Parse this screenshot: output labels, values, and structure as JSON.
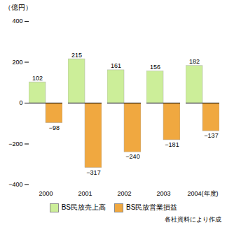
{
  "chart_data": {
    "type": "bar",
    "categories": [
      "2000",
      "2001",
      "2002",
      "2003",
      "2004(年度)"
    ],
    "series": [
      {
        "name": "BS民放売上高",
        "color": "#ccee99",
        "values": [
          102,
          215,
          161,
          156,
          182
        ]
      },
      {
        "name": "BS民放営業損益",
        "color": "#f0a840",
        "values": [
          -98,
          -317,
          -240,
          -181,
          -137
        ],
        "value_labels": [
          "−98",
          "−317",
          "−240",
          "−181",
          "−137"
        ]
      }
    ],
    "ylabel": "（億円）",
    "ylim": [
      -400,
      400
    ],
    "yticks": [
      -400,
      -200,
      0,
      200,
      400
    ],
    "grid": false,
    "legend": "bottom",
    "data_labels": true,
    "annotations": [
      "各社資料により作成"
    ]
  }
}
